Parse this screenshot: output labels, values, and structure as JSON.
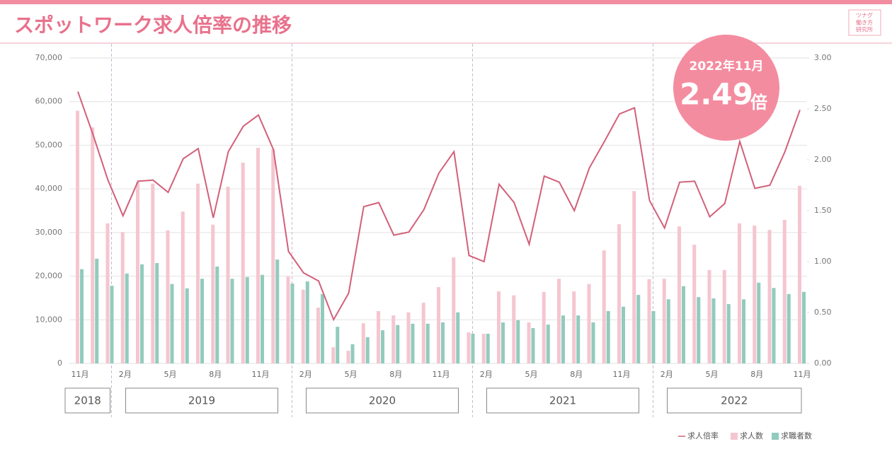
{
  "chart_data": {
    "type": "bar_line",
    "title": "スポットワーク求人倍率の推移",
    "logo": [
      "ツナグ",
      "働き方",
      "研究所"
    ],
    "categories": [
      "11月",
      null,
      null,
      "2月",
      null,
      null,
      "5月",
      null,
      null,
      "8月",
      null,
      null,
      "11月",
      null,
      null,
      "2月",
      null,
      null,
      "5月",
      null,
      null,
      "8月",
      null,
      null,
      "11月",
      null,
      null,
      "2月",
      null,
      null,
      "5月",
      null,
      null,
      "8月",
      null,
      null,
      "11月",
      null,
      null,
      "2月",
      null,
      null,
      "5月",
      null,
      null,
      "8月",
      null,
      null,
      "11月"
    ],
    "years": [
      "2018",
      "2019",
      "2020",
      "2021",
      "2022"
    ],
    "series": [
      {
        "name": "求人倍率",
        "color": "#d2607a",
        "axis": "y2",
        "kind": "line",
        "values": [
          2.67,
          2.25,
          1.8,
          1.45,
          1.79,
          1.8,
          1.68,
          2.01,
          2.11,
          1.43,
          2.08,
          2.33,
          2.44,
          2.1,
          1.1,
          0.89,
          0.81,
          0.43,
          0.69,
          1.54,
          1.58,
          1.26,
          1.29,
          1.51,
          1.87,
          2.08,
          1.06,
          1.0,
          1.76,
          1.58,
          1.17,
          1.84,
          1.78,
          1.5,
          1.92,
          2.18,
          2.45,
          2.51,
          1.6,
          1.33,
          1.78,
          1.79,
          1.44,
          1.57,
          2.18,
          1.72,
          1.75,
          2.08,
          2.49
        ]
      },
      {
        "name": "求人数",
        "color": "#f5c6d0",
        "kind": "bar",
        "values": [
          57900,
          54100,
          32100,
          30100,
          41500,
          41200,
          30500,
          34800,
          41200,
          31800,
          40500,
          46000,
          49400,
          49100,
          19900,
          16900,
          12800,
          3700,
          2900,
          9200,
          12000,
          11000,
          11700,
          13900,
          17500,
          24300,
          7100,
          6800,
          16500,
          15600,
          9400,
          16400,
          19400,
          16500,
          18200,
          25900,
          31900,
          39500,
          19300,
          19400,
          31400,
          27200,
          21400,
          21400,
          32100,
          31600,
          30600,
          32900,
          40700
        ]
      },
      {
        "name": "求職者数",
        "color": "#92cbbd",
        "kind": "bar",
        "values": [
          21600,
          24000,
          17800,
          20600,
          22700,
          23000,
          18200,
          17200,
          19400,
          22200,
          19400,
          19800,
          20300,
          23800,
          18300,
          18800,
          15900,
          8400,
          4400,
          6000,
          7600,
          8800,
          9100,
          9100,
          9400,
          11700,
          6800,
          6800,
          9400,
          9900,
          8100,
          8900,
          11000,
          11000,
          9400,
          12000,
          13000,
          15700,
          12000,
          14700,
          17700,
          15200,
          14900,
          13600,
          14700,
          18500,
          17300,
          15900,
          16400
        ]
      }
    ],
    "ylim": [
      0,
      70000
    ],
    "yticks": [
      0,
      {
        "value": 10000,
        "label": "10,000"
      },
      {
        "value": 20000,
        "label": "20,000"
      },
      {
        "value": 30000,
        "label": "30,000"
      },
      {
        "value": 40000,
        "label": "40,000"
      },
      {
        "value": 50000,
        "label": "50,000"
      },
      {
        "value": 60000,
        "label": "60,000"
      },
      {
        "value": 70000,
        "label": "70,000"
      }
    ],
    "y2lim": [
      0,
      3
    ],
    "y2ticks": [
      {
        "value": 0,
        "label": "0.00"
      },
      {
        "value": 0.5,
        "label": "0.50"
      },
      {
        "value": 1,
        "label": "1.00"
      },
      {
        "value": 1.5,
        "label": "1.50"
      },
      {
        "value": 2,
        "label": "2.00"
      },
      {
        "value": 2.5,
        "label": "2.50"
      },
      {
        "value": 3,
        "label": "3.00"
      }
    ],
    "grid": true,
    "callout": {
      "period": "2022年11月",
      "value": 2.49,
      "unit": "倍"
    }
  }
}
